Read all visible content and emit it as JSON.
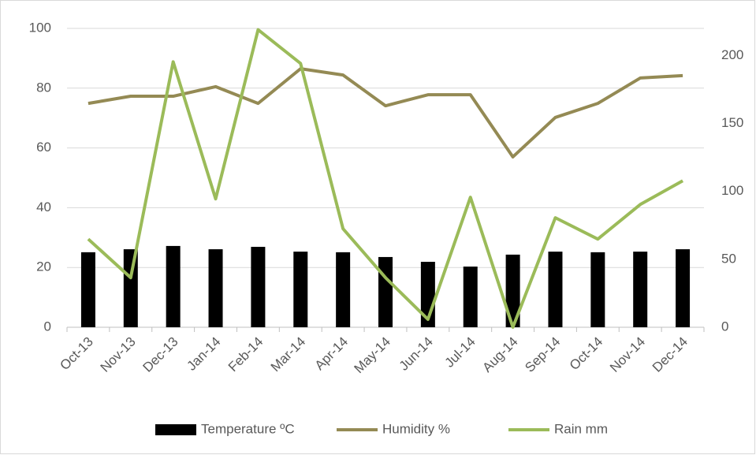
{
  "chart_data": {
    "type": "bar_line",
    "categories": [
      "Oct-13",
      "Nov-13",
      "Dec-13",
      "Jan-14",
      "Feb-14",
      "Mar-14",
      "Apr-14",
      "May-14",
      "Jun-14",
      "Jul-14",
      "Aug-14",
      "Sep-14",
      "Oct-14",
      "Nov-14",
      "Dec-14"
    ],
    "series": [
      {
        "name": "Temperature ºC",
        "type": "bar",
        "color": "#000000",
        "axis": "y",
        "values": [
          25.1,
          26.1,
          27.2,
          26.1,
          26.9,
          25.3,
          25.1,
          23.5,
          21.9,
          20.3,
          24.3,
          25.3,
          25.1,
          25.3,
          26.1
        ]
      },
      {
        "name": "Humidity %",
        "type": "line",
        "color": "#948a54",
        "axis": "y",
        "values": [
          74.9,
          77.3,
          77.3,
          80.5,
          74.9,
          86.5,
          84.4,
          74.1,
          77.8,
          77.8,
          57,
          70.2,
          74.9,
          83.4,
          84.2
        ]
      },
      {
        "name": "Rain mm",
        "type": "line",
        "color": "#9bbb59",
        "axis": "y2",
        "values": [
          64.9,
          36.5,
          195.4,
          94.5,
          219,
          194.2,
          72.5,
          36.5,
          5.8,
          95.7,
          0,
          80.6,
          64.9,
          90.4,
          107.8
        ]
      }
    ],
    "ylim": [
      0,
      100
    ],
    "yticks": [
      0,
      20,
      40,
      60,
      80,
      100
    ],
    "y2lim": [
      0,
      220
    ],
    "y2ticks": [
      0,
      50,
      100,
      150,
      200
    ],
    "grid": true,
    "legend": "bottom"
  }
}
